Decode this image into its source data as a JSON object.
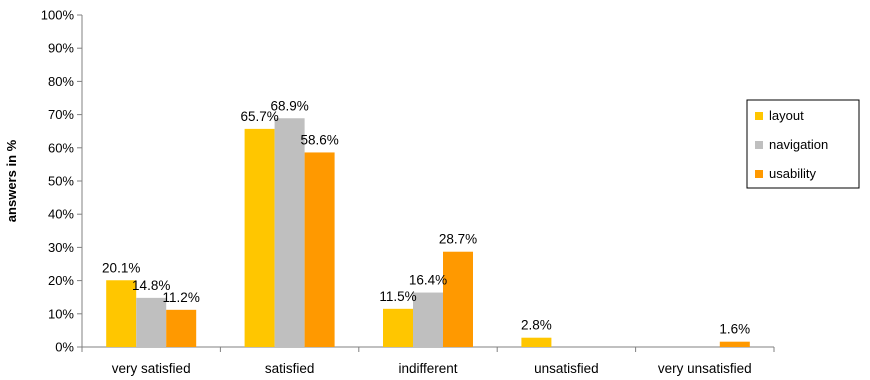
{
  "chart_data": {
    "type": "bar",
    "title": "",
    "xlabel": "",
    "ylabel": "answers in %",
    "ylim": [
      0,
      100
    ],
    "yticks": [
      0,
      10,
      20,
      30,
      40,
      50,
      60,
      70,
      80,
      90,
      100
    ],
    "ytick_suffix": "%",
    "grid": false,
    "legend_position": "right",
    "categories": [
      "very satisfied",
      "satisfied",
      "indifferent",
      "unsatisfied",
      "very unsatisfied"
    ],
    "series": [
      {
        "name": "layout",
        "color": "#ffc600",
        "values": [
          20.1,
          65.7,
          11.5,
          2.8,
          null
        ],
        "labels": [
          "20.1%",
          "65.7%",
          "11.5%",
          "2.8%",
          ""
        ]
      },
      {
        "name": "navigation",
        "color": "#bfbfbf",
        "values": [
          14.8,
          68.9,
          16.4,
          null,
          null
        ],
        "labels": [
          "14.8%",
          "68.9%",
          "16.4%",
          "",
          ""
        ]
      },
      {
        "name": "usability",
        "color": "#ff9900",
        "values": [
          11.2,
          58.6,
          28.7,
          null,
          1.6
        ],
        "labels": [
          "11.2%",
          "58.6%",
          "28.7%",
          "",
          "1.6%"
        ]
      }
    ]
  }
}
